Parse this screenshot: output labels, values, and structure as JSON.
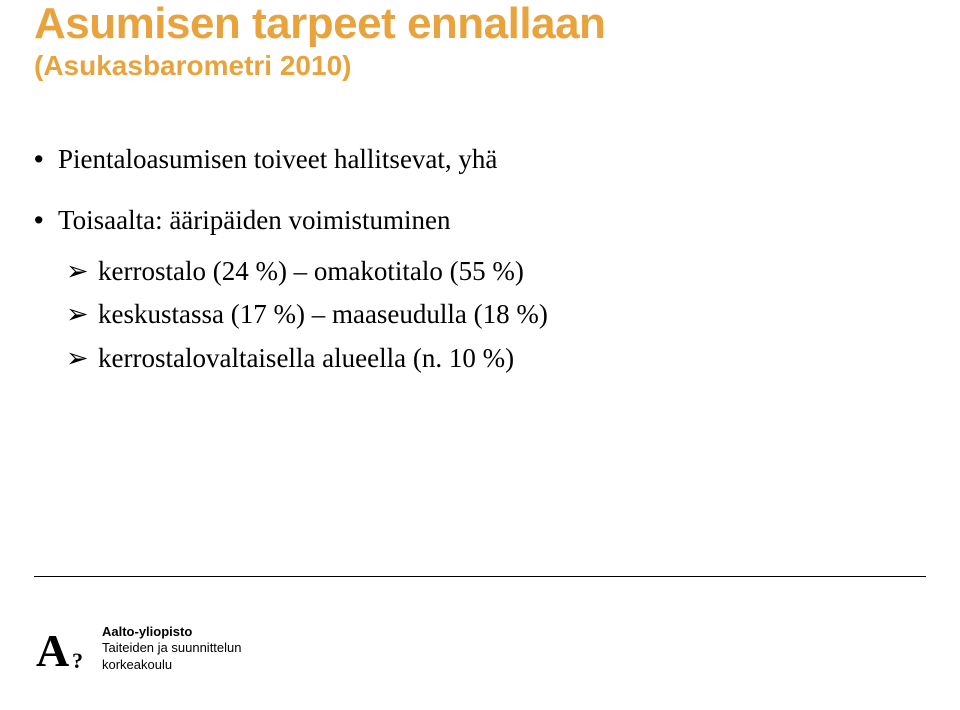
{
  "title": {
    "main": "Asumisen tarpeet ennallaan",
    "sub": "(Asukasbarometri 2010)",
    "color": "#e8a33d",
    "main_fontsize": 44,
    "sub_fontsize": 28
  },
  "body": {
    "text_color": "#000000",
    "fontsize": 27,
    "bullets": [
      {
        "text": "Pientaloasumisen toiveet hallitsevat, yhä"
      },
      {
        "text": "Toisaalta: ääripäiden voimistuminen",
        "sub": [
          "kerrostalo (24 %) – omakotitalo (55 %)",
          "keskustassa (17 %) – maaseudulla (18 %)",
          "kerrostalovaltaisella alueella (n. 10 %)"
        ]
      }
    ]
  },
  "divider": {
    "color": "#000000"
  },
  "footer": {
    "logo_glyph": "A",
    "logo_mark": "?",
    "university": "Aalto-yliopisto",
    "school_line1": "Taiteiden ja suunnittelun",
    "school_line2": "korkeakoulu"
  }
}
